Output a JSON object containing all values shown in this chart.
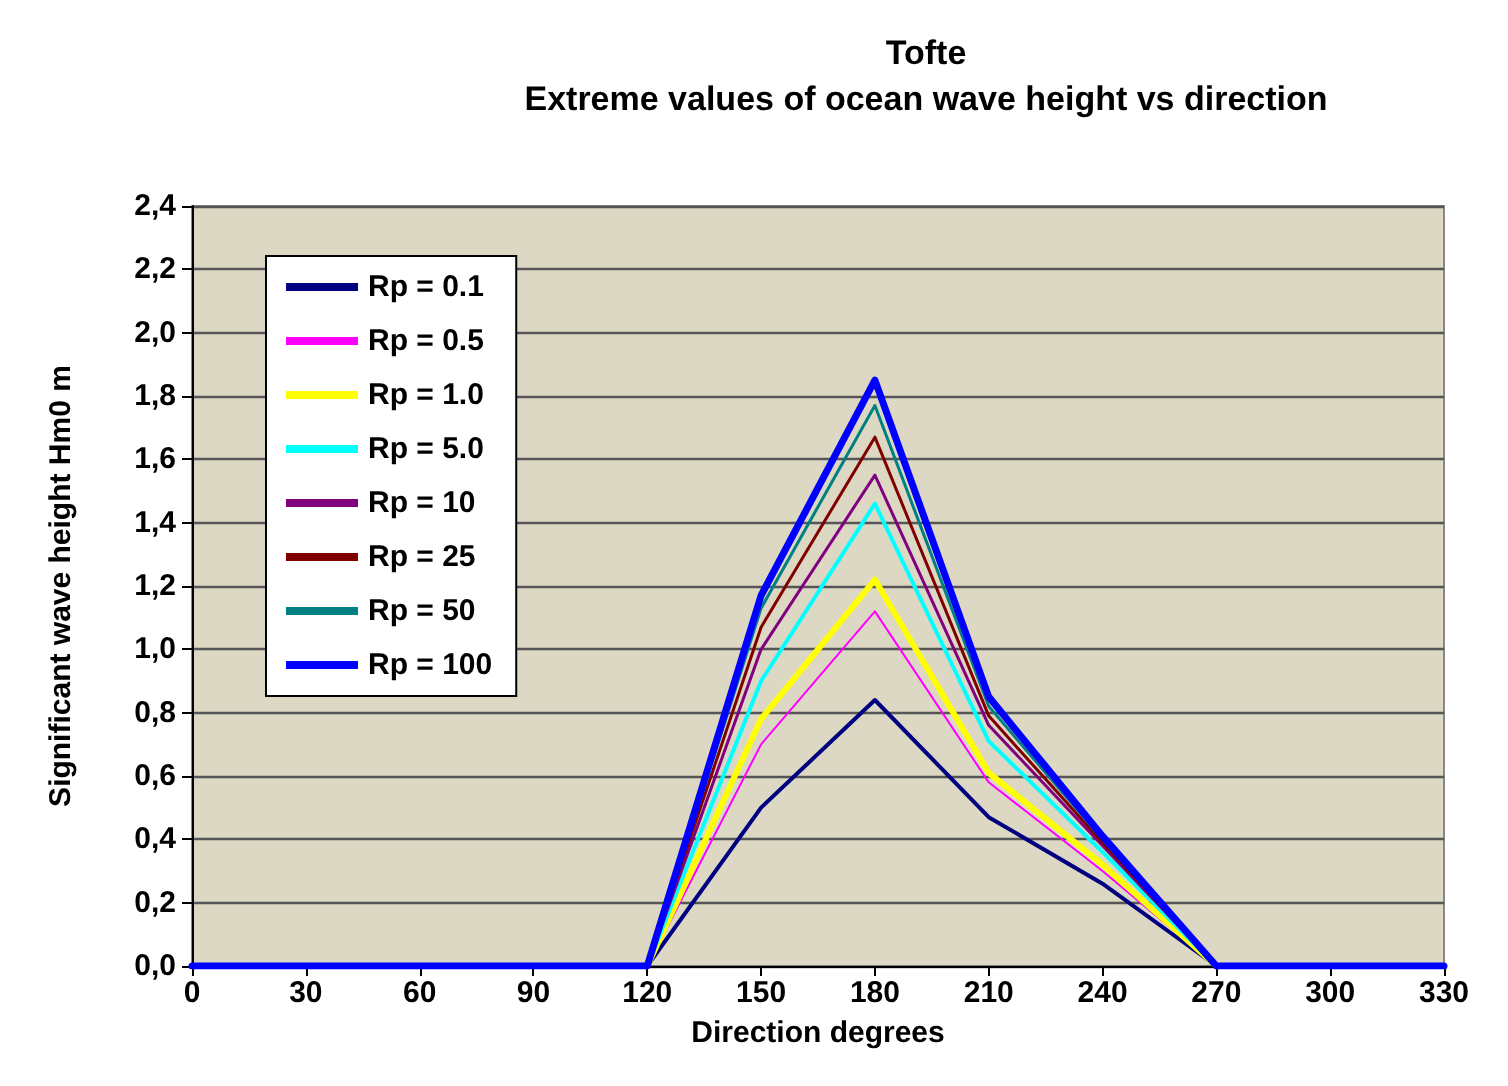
{
  "chart_data": {
    "type": "line",
    "title": "Tofte",
    "subtitle": "Extreme values of ocean wave height vs direction",
    "xlabel": "Direction degrees",
    "ylabel": "Significant wave height Hm0 m",
    "x": [
      0,
      30,
      60,
      90,
      120,
      150,
      180,
      210,
      240,
      270,
      300,
      330
    ],
    "xlim": [
      0,
      330
    ],
    "xticks": [
      0,
      30,
      60,
      90,
      120,
      150,
      180,
      210,
      240,
      270,
      300,
      330
    ],
    "ylim": [
      0,
      2.4
    ],
    "yticks": [
      {
        "value": 0,
        "label": "0,0"
      },
      {
        "value": 0.2,
        "label": "0,2"
      },
      {
        "value": 0.4,
        "label": "0,4"
      },
      {
        "value": 0.6,
        "label": "0,6"
      },
      {
        "value": 0.8,
        "label": "0,8"
      },
      {
        "value": 1.0,
        "label": "1,0"
      },
      {
        "value": 1.2,
        "label": "1,2"
      },
      {
        "value": 1.4,
        "label": "1,4"
      },
      {
        "value": 1.6,
        "label": "1,6"
      },
      {
        "value": 1.8,
        "label": "1,8"
      },
      {
        "value": 2.0,
        "label": "2,0"
      },
      {
        "value": 2.2,
        "label": "2,2"
      },
      {
        "value": 2.4,
        "label": "2,4"
      }
    ],
    "grid": "y",
    "legend": "top left",
    "marker": "none",
    "line_style": "solid",
    "series": [
      {
        "name": "Rp = 0.1",
        "color": "#000080",
        "values": [
          null,
          null,
          null,
          null,
          0,
          0.5,
          0.84,
          0.47,
          0.26,
          0,
          null,
          null
        ]
      },
      {
        "name": "Rp = 0.5",
        "color": "#ff00ff",
        "values": [
          null,
          null,
          null,
          null,
          0,
          0.7,
          1.12,
          0.58,
          0.3,
          0,
          null,
          null
        ]
      },
      {
        "name": "Rp = 1.0",
        "color": "#ffff00",
        "values": [
          null,
          null,
          null,
          null,
          0,
          0.78,
          1.22,
          0.61,
          0.32,
          0,
          null,
          null
        ]
      },
      {
        "name": "Rp = 5.0",
        "color": "#00ffff",
        "values": [
          null,
          null,
          null,
          null,
          0,
          0.9,
          1.46,
          0.71,
          0.36,
          0,
          null,
          null
        ]
      },
      {
        "name": "Rp = 10",
        "color": "#800080",
        "values": [
          null,
          null,
          null,
          null,
          0,
          1.0,
          1.55,
          0.76,
          0.38,
          0,
          null,
          null
        ]
      },
      {
        "name": "Rp = 25",
        "color": "#800000",
        "values": [
          null,
          null,
          null,
          null,
          0,
          1.07,
          1.67,
          0.79,
          0.39,
          0,
          null,
          null
        ]
      },
      {
        "name": "Rp = 50",
        "color": "#008080",
        "values": [
          null,
          null,
          null,
          null,
          0,
          1.13,
          1.77,
          0.82,
          0.4,
          0,
          null,
          null
        ]
      },
      {
        "name": "Rp = 100",
        "color": "#0000ff",
        "values": [
          0,
          0,
          0,
          0,
          0,
          1.17,
          1.85,
          0.85,
          0.41,
          0,
          0,
          0
        ]
      }
    ]
  }
}
